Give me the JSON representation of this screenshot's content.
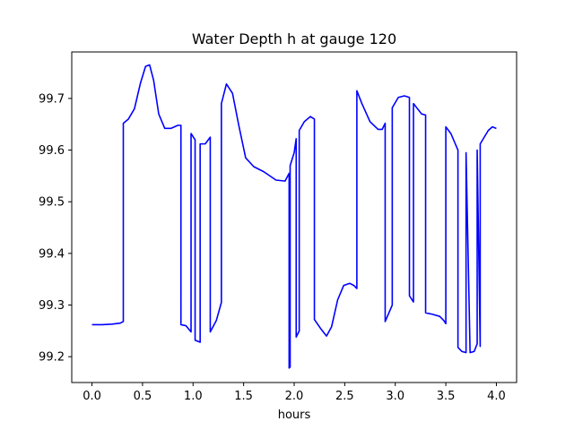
{
  "chart_data": {
    "type": "line",
    "title": "Water Depth h at gauge 120",
    "xlabel": "hours",
    "ylabel": "",
    "xlim": [
      -0.2,
      4.2
    ],
    "ylim": [
      99.15,
      99.79
    ],
    "xticks": [
      0.0,
      0.5,
      1.0,
      1.5,
      2.0,
      2.5,
      3.0,
      3.5,
      4.0
    ],
    "xtick_labels": [
      "0.0",
      "0.5",
      "1.0",
      "1.5",
      "2.0",
      "2.5",
      "3.0",
      "3.5",
      "4.0"
    ],
    "yticks": [
      99.2,
      99.3,
      99.4,
      99.5,
      99.6,
      99.7
    ],
    "ytick_labels": [
      "99.2",
      "99.3",
      "99.4",
      "99.5",
      "99.6",
      "99.7"
    ],
    "grid": false,
    "series": [
      {
        "color": "#0000ff",
        "x": [
          0.0,
          0.1,
          0.2,
          0.28,
          0.31,
          0.31,
          0.36,
          0.42,
          0.48,
          0.53,
          0.57,
          0.61,
          0.66,
          0.72,
          0.78,
          0.85,
          0.88,
          0.88,
          0.93,
          0.98,
          0.98,
          1.02,
          1.02,
          1.07,
          1.07,
          1.12,
          1.17,
          1.17,
          1.23,
          1.28,
          1.28,
          1.33,
          1.39,
          1.45,
          1.52,
          1.6,
          1.7,
          1.82,
          1.91,
          1.95,
          1.95,
          1.96,
          1.96,
          2.0,
          2.02,
          2.02,
          2.05,
          2.05,
          2.1,
          2.16,
          2.2,
          2.2,
          2.26,
          2.32,
          2.37,
          2.43,
          2.49,
          2.55,
          2.59,
          2.62,
          2.62,
          2.67,
          2.75,
          2.83,
          2.87,
          2.9,
          2.9,
          2.97,
          2.97,
          3.03,
          3.09,
          3.14,
          3.14,
          3.18,
          3.18,
          3.26,
          3.3,
          3.3,
          3.37,
          3.44,
          3.48,
          3.5,
          3.5,
          3.55,
          3.62,
          3.62,
          3.66,
          3.7,
          3.7,
          3.74,
          3.78,
          3.81,
          3.81,
          3.84,
          3.84,
          3.88,
          3.92,
          3.96,
          4.0
        ],
        "y": [
          99.262,
          99.262,
          99.263,
          99.265,
          99.268,
          99.652,
          99.66,
          99.68,
          99.73,
          99.762,
          99.765,
          99.735,
          99.67,
          99.642,
          99.642,
          99.648,
          99.648,
          99.262,
          99.26,
          99.248,
          99.632,
          99.62,
          99.232,
          99.228,
          99.612,
          99.612,
          99.625,
          99.248,
          99.27,
          99.305,
          99.69,
          99.728,
          99.71,
          99.65,
          99.585,
          99.568,
          99.558,
          99.542,
          99.54,
          99.555,
          99.178,
          99.18,
          99.57,
          99.595,
          99.622,
          99.238,
          99.25,
          99.638,
          99.655,
          99.665,
          99.66,
          99.272,
          99.255,
          99.24,
          99.258,
          99.31,
          99.338,
          99.342,
          99.338,
          99.332,
          99.715,
          99.69,
          99.655,
          99.64,
          99.64,
          99.652,
          99.268,
          99.3,
          99.682,
          99.702,
          99.705,
          99.702,
          99.318,
          99.306,
          99.69,
          99.67,
          99.668,
          99.285,
          99.282,
          99.278,
          99.27,
          99.264,
          99.645,
          99.632,
          99.6,
          99.218,
          99.21,
          99.208,
          99.595,
          99.208,
          99.21,
          99.225,
          99.6,
          99.22,
          99.612,
          99.625,
          99.638,
          99.645,
          99.642
        ]
      }
    ]
  }
}
